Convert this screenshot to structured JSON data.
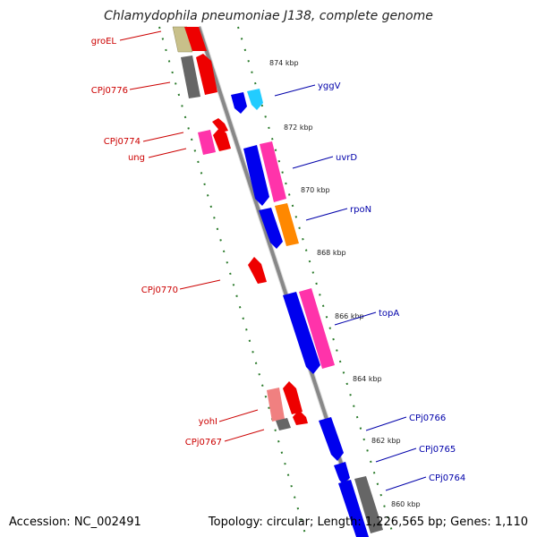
{
  "title": "Chlamydophila pneumoniae J138, complete genome",
  "footer": {
    "accession": "Accession: NC_002491",
    "summary": "Topology: circular; Length: 1,226,565 bp; Genes: 1,110"
  },
  "colors": {
    "backbone": "#888888",
    "ticks": "#2a7a2a",
    "left_label": "#cc0000",
    "right_label": "#0000aa"
  },
  "kbp_labels": [
    "874 kbp",
    "872 kbp",
    "870 kbp",
    "868 kbp",
    "866 kbp",
    "864 kbp",
    "862 kbp",
    "860 kbp"
  ],
  "left_labels": [
    "groEL",
    "CPj0776",
    "CPj0774",
    "ung",
    "CPj0770",
    "yohI",
    "CPj0767"
  ],
  "right_labels": [
    "yggV",
    "uvrD",
    "rpoN",
    "topA",
    "CPj0766",
    "CPj0765",
    "CPj0764"
  ]
}
